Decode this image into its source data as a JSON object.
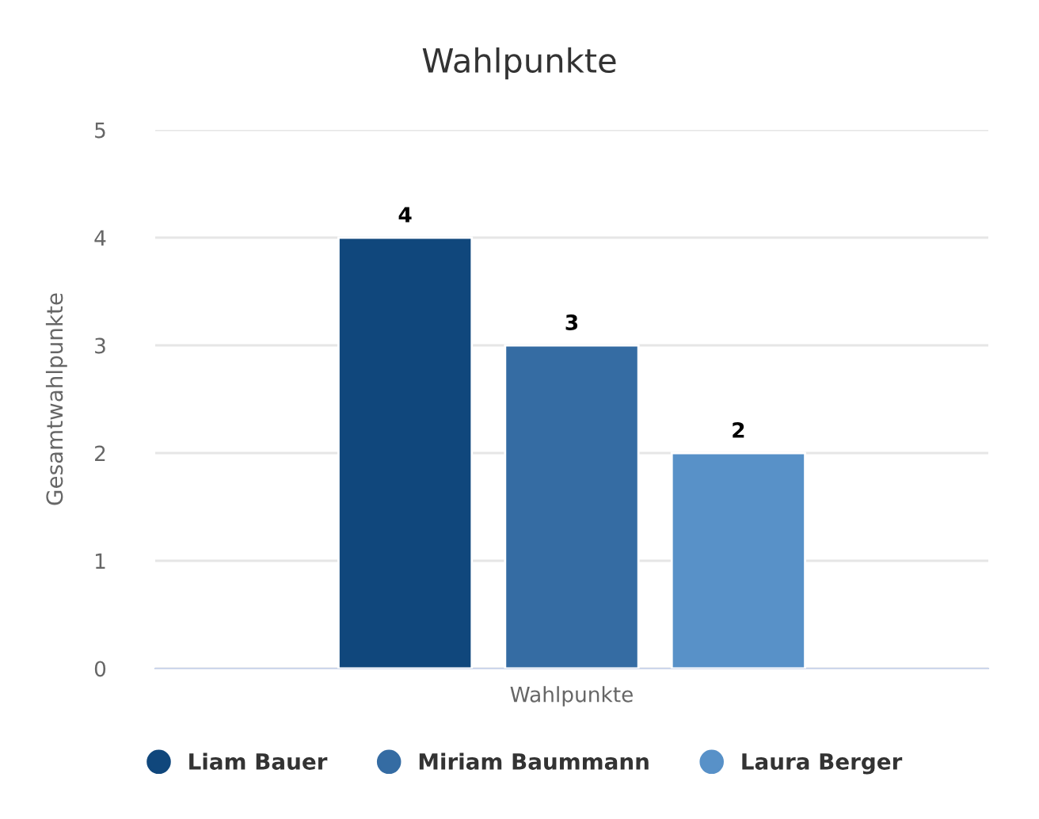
{
  "chart_data": {
    "type": "bar",
    "title": "Wahlpunkte",
    "ylabel": "Gesamtwahlpunkte",
    "categories": [
      "Wahlpunkte"
    ],
    "series": [
      {
        "name": "Liam Bauer",
        "color": "#10477c",
        "values": [
          4
        ]
      },
      {
        "name": "Miriam Baummann",
        "color": "#356ca3",
        "values": [
          3
        ]
      },
      {
        "name": "Laura Berger",
        "color": "#5891c8",
        "values": [
          2
        ]
      }
    ],
    "ylim": [
      0,
      5
    ],
    "yticks": [
      0,
      1,
      2,
      3,
      4,
      5
    ],
    "grid": "y",
    "legend": "bottom",
    "data_labels": true
  }
}
